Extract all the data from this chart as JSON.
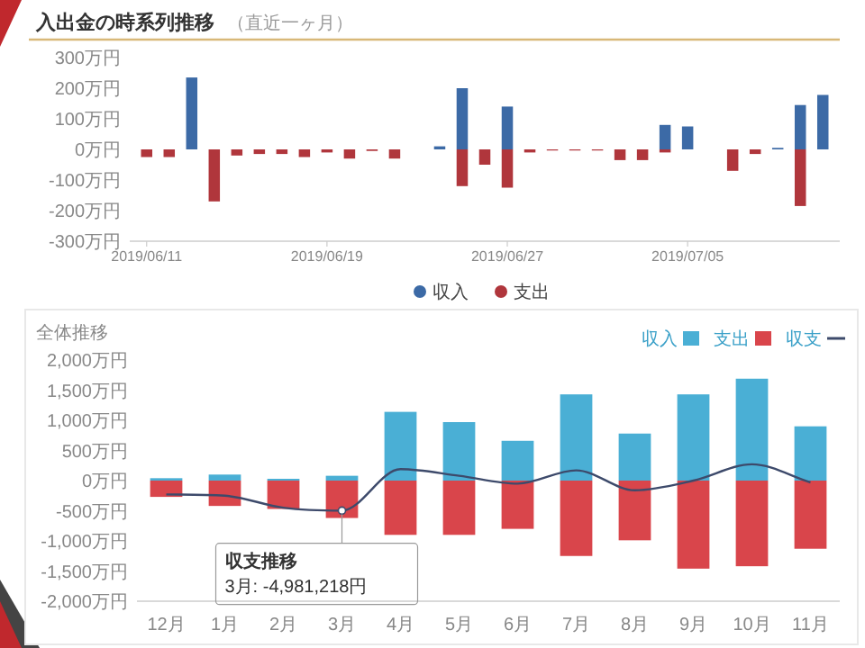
{
  "chart_data": [
    {
      "type": "bar",
      "title": "入出金の時系列推移",
      "subtitle": "（直近一ヶ月）",
      "stacked": true,
      "legend": "bottom",
      "grid": false,
      "x": [
        "2019-06-11",
        "2019-06-12",
        "2019-06-13",
        "2019-06-14",
        "2019-06-15",
        "2019-06-16",
        "2019-06-17",
        "2019-06-18",
        "2019-06-19",
        "2019-06-20",
        "2019-06-21",
        "2019-06-22",
        "2019-06-24",
        "2019-06-25",
        "2019-06-26",
        "2019-06-27",
        "2019-06-28",
        "2019-06-29",
        "2019-06-30",
        "2019-07-01",
        "2019-07-02",
        "2019-07-03",
        "2019-07-04",
        "2019-07-05",
        "2019-07-07",
        "2019-07-08",
        "2019-07-09",
        "2019-07-10",
        "2019-07-11"
      ],
      "series": [
        {
          "name": "収入",
          "color": "#3c6aa6",
          "values": [
            null,
            null,
            235,
            null,
            null,
            null,
            null,
            null,
            null,
            null,
            null,
            null,
            10,
            200,
            null,
            140,
            null,
            null,
            null,
            null,
            null,
            null,
            80,
            75,
            null,
            null,
            5,
            145,
            178
          ]
        },
        {
          "name": "支出",
          "color": "#b0363c",
          "values": [
            -25,
            -25,
            null,
            -170,
            -20,
            -15,
            -15,
            -25,
            -10,
            -30,
            -5,
            -30,
            null,
            -120,
            -50,
            -125,
            -10,
            -2,
            -2,
            -2,
            -35,
            -35,
            -10,
            null,
            -70,
            -15,
            null,
            -185,
            null
          ]
        }
      ],
      "xlim": [
        "2019-06-10T06:00",
        "2019-07-11T18:00"
      ],
      "xticks": [
        {
          "value": "2019-06-11",
          "label": "2019/06/11"
        },
        {
          "value": "2019-06-19",
          "label": "2019/06/19"
        },
        {
          "value": "2019-06-27",
          "label": "2019/06/27"
        },
        {
          "value": "2019-07-05",
          "label": "2019/07/05"
        }
      ],
      "ylim": [
        -300,
        300
      ],
      "yticks": [
        {
          "value": 300,
          "label": "300万円"
        },
        {
          "value": 200,
          "label": "200万円"
        },
        {
          "value": 100,
          "label": "100万円"
        },
        {
          "value": 0,
          "label": "0万円"
        },
        {
          "value": -100,
          "label": "-100万円"
        },
        {
          "value": -200,
          "label": "-200万円"
        },
        {
          "value": -300,
          "label": "-300万円"
        }
      ]
    },
    {
      "type": "bar",
      "title": "全体推移",
      "stacked": true,
      "legend": "top right",
      "grid": false,
      "categories": [
        "12月",
        "1月",
        "2月",
        "3月",
        "4月",
        "5月",
        "6月",
        "7月",
        "8月",
        "9月",
        "10月",
        "11月"
      ],
      "series": [
        {
          "name": "収入",
          "color": "#4aafd5",
          "values": [
            40,
            100,
            30,
            80,
            1140,
            970,
            660,
            1430,
            780,
            1430,
            1690,
            900
          ]
        },
        {
          "name": "支出",
          "color": "#d9454b",
          "values": [
            -270,
            -420,
            -470,
            -620,
            -900,
            -900,
            -800,
            -1250,
            -990,
            -1460,
            -1420,
            -1130
          ]
        },
        {
          "name": "収支",
          "type": "line",
          "color": "#3d4a6b",
          "marker": "none",
          "line_style": "solid",
          "values": [
            -230,
            -250,
            -450,
            -498,
            190,
            80,
            -50,
            170,
            -160,
            0,
            270,
            -30
          ]
        }
      ],
      "ylim": [
        -2000,
        2000
      ],
      "yticks": [
        {
          "value": 2000,
          "label": "2,000万円"
        },
        {
          "value": 1500,
          "label": "1,500万円"
        },
        {
          "value": 1000,
          "label": "1,000万円"
        },
        {
          "value": 500,
          "label": "500万円"
        },
        {
          "value": 0,
          "label": "0万円"
        },
        {
          "value": -500,
          "label": "-500万円"
        },
        {
          "value": -1000,
          "label": "-1,000万円"
        },
        {
          "value": -1500,
          "label": "-1,500万円"
        },
        {
          "value": -2000,
          "label": "-2,000万円"
        }
      ],
      "annotations": [
        {
          "text": "収支推移\n3月: -4,981,218円",
          "x": "3月",
          "y": -498
        }
      ]
    }
  ]
}
